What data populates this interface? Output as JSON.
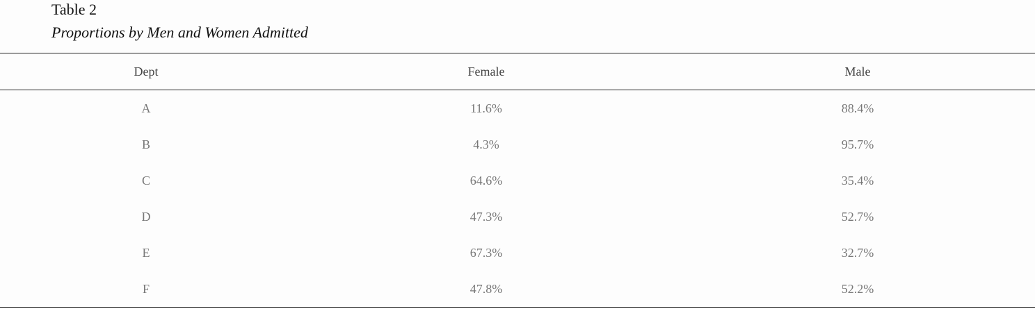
{
  "caption": {
    "label": "Table 2",
    "title": "Proportions by Men and Women Admitted"
  },
  "table": {
    "headers": [
      "Dept",
      "Female",
      "Male"
    ],
    "rows": [
      [
        "A",
        "11.6%",
        "88.4%"
      ],
      [
        "B",
        "4.3%",
        "95.7%"
      ],
      [
        "C",
        "64.6%",
        "35.4%"
      ],
      [
        "D",
        "47.3%",
        "52.7%"
      ],
      [
        "E",
        "67.3%",
        "32.7%"
      ],
      [
        "F",
        "47.8%",
        "52.2%"
      ]
    ]
  }
}
